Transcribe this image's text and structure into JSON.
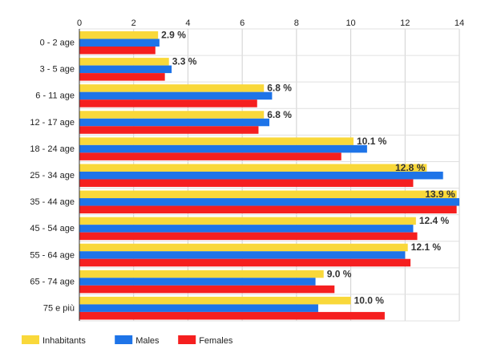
{
  "chart_data": {
    "type": "bar",
    "orientation": "horizontal",
    "categories": [
      "0 - 2 age",
      "3 - 5 age",
      "6 - 11 age",
      "12 - 17 age",
      "18 - 24 age",
      "25 - 34 age",
      "35 - 44 age",
      "45 - 54 age",
      "55 - 64 age",
      "65 - 74 age",
      "75 e più"
    ],
    "series": [
      {
        "name": "Inhabitants",
        "color": "#F9D83A",
        "values": [
          2.9,
          3.3,
          6.8,
          6.8,
          10.1,
          12.8,
          13.9,
          12.4,
          12.1,
          9.0,
          10.0
        ]
      },
      {
        "name": "Males",
        "color": "#1E74E8",
        "values": [
          2.95,
          3.4,
          7.1,
          7.0,
          10.6,
          13.4,
          14.0,
          12.3,
          12.0,
          8.7,
          8.8
        ]
      },
      {
        "name": "Females",
        "color": "#F51F1F",
        "values": [
          2.8,
          3.15,
          6.55,
          6.6,
          9.65,
          12.3,
          13.9,
          12.45,
          12.2,
          9.4,
          11.25
        ]
      }
    ],
    "data_labels": [
      "2.9 %",
      "3.3 %",
      "6.8 %",
      "6.8 %",
      "10.1 %",
      "12.8 %",
      "13.9 %",
      "12.4 %",
      "12.1 %",
      "9.0 %",
      "10.0 %"
    ],
    "xticks": [
      "0",
      "2",
      "4",
      "6",
      "8",
      "10",
      "12",
      "14"
    ],
    "xlim": [
      0,
      14
    ],
    "title": "",
    "xlabel": "",
    "ylabel": "",
    "grid": true,
    "legend_position": "bottom-left"
  }
}
